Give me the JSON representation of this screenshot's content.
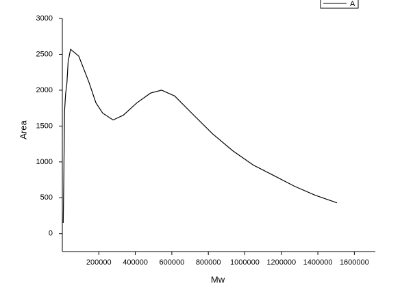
{
  "chart_data": {
    "type": "line",
    "x_label": "Mw",
    "y_label": "Area",
    "x": [
      5000,
      8000,
      12000,
      18000,
      25000,
      32000,
      45000,
      90000,
      146000,
      184000,
      221000,
      278000,
      334000,
      409000,
      484000,
      544000,
      615000,
      709000,
      822000,
      934000,
      1047000,
      1159000,
      1272000,
      1385000,
      1505000
    ],
    "series": [
      {
        "name": "A",
        "color": "#000000",
        "values": [
          150,
          700,
          1700,
          1950,
          2100,
          2400,
          2570,
          2475,
          2110,
          1825,
          1680,
          1585,
          1650,
          1825,
          1960,
          2000,
          1920,
          1680,
          1395,
          1155,
          955,
          810,
          660,
          535,
          430
        ]
      }
    ],
    "xlim": [
      0,
      1715000
    ],
    "ylim": [
      -250,
      3000
    ],
    "xticks": [
      200000,
      400000,
      600000,
      800000,
      1000000,
      1200000,
      1400000,
      1600000
    ],
    "yticks": [
      0,
      500,
      1000,
      1500,
      2000,
      2500,
      3000
    ],
    "legend": "top-right"
  }
}
